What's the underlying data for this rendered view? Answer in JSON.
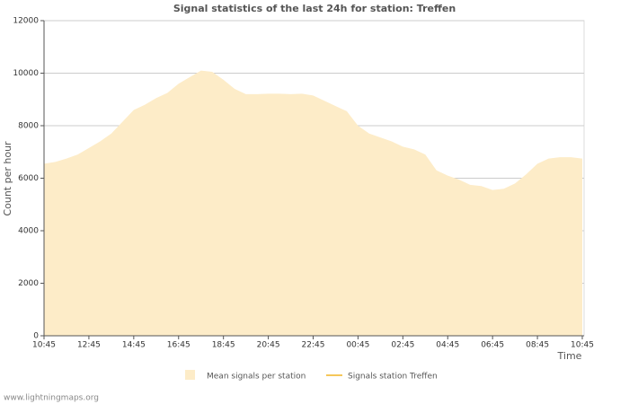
{
  "chart_data": {
    "type": "area",
    "title": "Signal statistics of the last 24h for station: Treffen",
    "xlabel": "Time",
    "ylabel": "Count per hour",
    "categories": [
      "10:45",
      null,
      null,
      null,
      "12:45",
      null,
      null,
      null,
      "14:45",
      null,
      null,
      null,
      "16:45",
      null,
      null,
      null,
      "18:45",
      null,
      null,
      null,
      "20:45",
      null,
      null,
      null,
      "22:45",
      null,
      null,
      null,
      "00:45",
      null,
      null,
      null,
      "02:45",
      null,
      null,
      null,
      "04:45",
      null,
      null,
      null,
      "06:45",
      null,
      null,
      null,
      "08:45",
      null,
      null,
      null,
      "10:45"
    ],
    "series": [
      {
        "name": "Mean signals per station",
        "color": "#fdecc8",
        "values": [
          6550,
          6620,
          6750,
          6900,
          7150,
          7400,
          7700,
          8150,
          8600,
          8800,
          9050,
          9250,
          9600,
          9850,
          10100,
          10050,
          9750,
          9400,
          9200,
          9200,
          9220,
          9220,
          9200,
          9220,
          9150,
          8950,
          8750,
          8550,
          8000,
          7700,
          7550,
          7400,
          7200,
          7100,
          6900,
          6300,
          6100,
          5950,
          5750,
          5700,
          5550,
          5600,
          5800,
          6150,
          6550,
          6750,
          6800,
          6800,
          6750
        ]
      },
      {
        "name": "Signals station Treffen",
        "color": "#f5c75a",
        "values": [
          null,
          null,
          null,
          null,
          null,
          null,
          null,
          null,
          null,
          null,
          null,
          null,
          null,
          null,
          null,
          null,
          null,
          null,
          null,
          null,
          null,
          null,
          null,
          null,
          null,
          null,
          null,
          null,
          null,
          null,
          null,
          null,
          null,
          null,
          null,
          null,
          null,
          null,
          null,
          null,
          null,
          null,
          null,
          null,
          null,
          null,
          null,
          null,
          null
        ]
      }
    ],
    "ylim": [
      0,
      12000
    ],
    "yticks": [
      0,
      2000,
      4000,
      6000,
      8000,
      10000,
      12000
    ],
    "grid": true
  },
  "footer": "www.lightningmaps.org"
}
